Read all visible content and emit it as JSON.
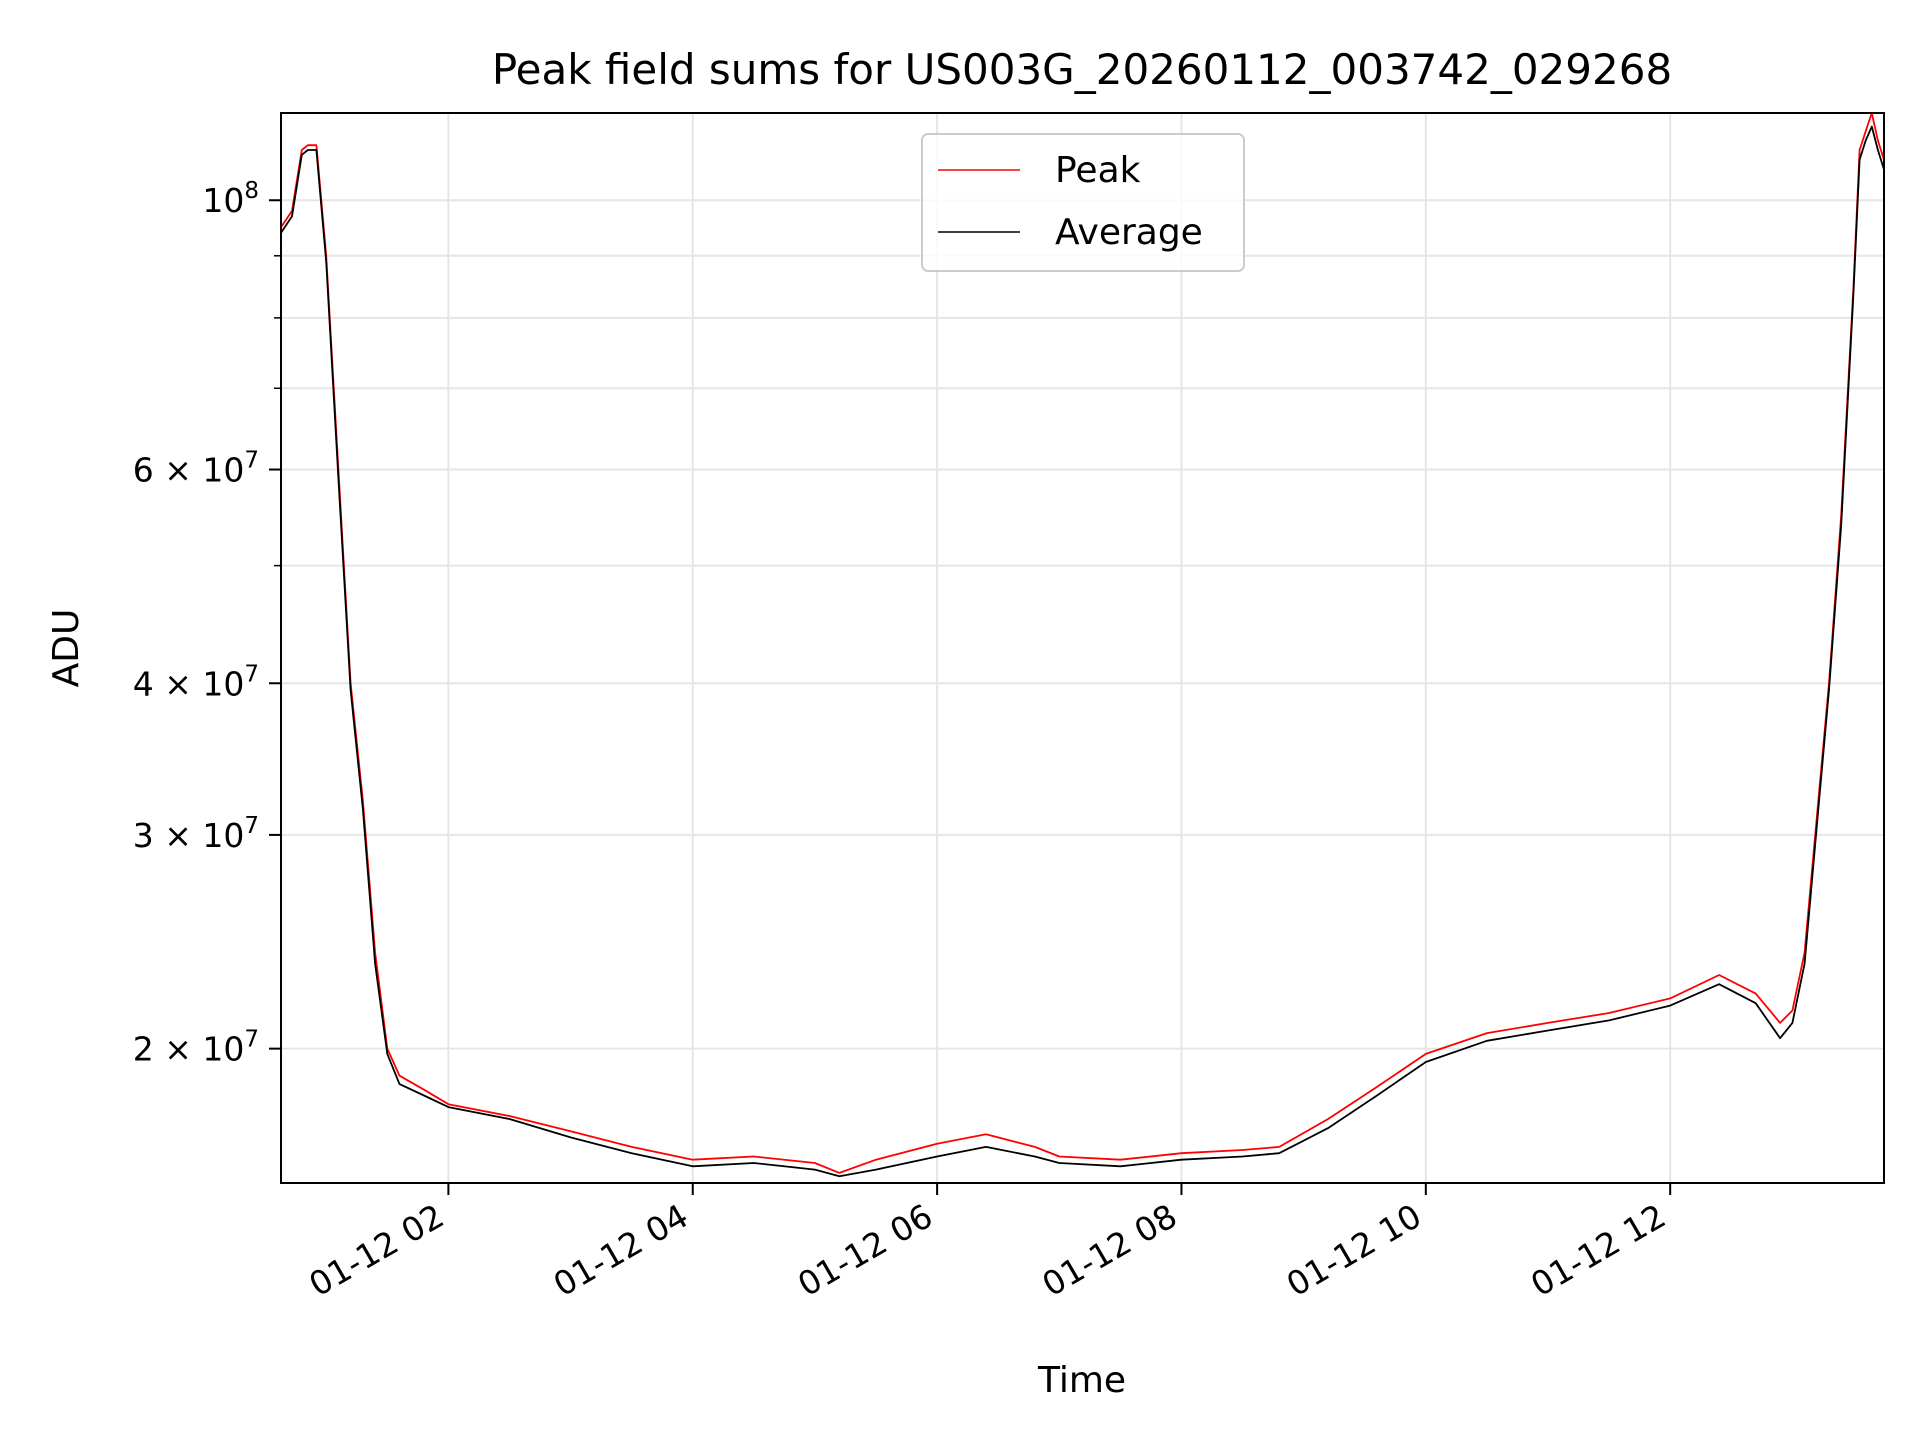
{
  "chart_data": {
    "type": "line",
    "title": "Peak field sums for US003G_20260112_003742_029268",
    "xlabel": "Time",
    "ylabel": "ADU",
    "x_unit": "hours since 2026-01-12 00:00",
    "xlim": [
      0.63,
      13.75
    ],
    "ylim": [
      15500000,
      118000000
    ],
    "yscale": "log",
    "grid": true,
    "legend_position": "top-center",
    "x_ticks": [
      {
        "value": 2,
        "label": "01-12 02"
      },
      {
        "value": 4,
        "label": "01-12 04"
      },
      {
        "value": 6,
        "label": "01-12 06"
      },
      {
        "value": 8,
        "label": "01-12 08"
      },
      {
        "value": 10,
        "label": "01-12 10"
      },
      {
        "value": 12,
        "label": "01-12 12"
      }
    ],
    "y_ticks": [
      {
        "value": 20000000,
        "mantissa": "2",
        "exponent": "7"
      },
      {
        "value": 30000000,
        "mantissa": "3",
        "exponent": "7"
      },
      {
        "value": 40000000,
        "mantissa": "4",
        "exponent": "7"
      },
      {
        "value": 60000000,
        "mantissa": "6",
        "exponent": "7"
      },
      {
        "value": 100000000,
        "mantissa": "10",
        "exponent": "8"
      }
    ],
    "y_minor_ticks": [
      50000000,
      70000000,
      80000000,
      90000000
    ],
    "series": [
      {
        "name": "Peak",
        "color": "#ff0000",
        "x": [
          0.63,
          0.72,
          0.8,
          0.85,
          0.92,
          1.0,
          1.1,
          1.2,
          1.3,
          1.4,
          1.5,
          1.6,
          1.8,
          2.0,
          2.5,
          3.0,
          3.5,
          4.0,
          4.5,
          5.0,
          5.2,
          5.5,
          6.0,
          6.4,
          6.8,
          7.0,
          7.5,
          8.0,
          8.5,
          8.8,
          9.2,
          9.6,
          10.0,
          10.5,
          11.0,
          11.5,
          12.0,
          12.4,
          12.7,
          12.9,
          13.0,
          13.1,
          13.2,
          13.3,
          13.4,
          13.5,
          13.55,
          13.6,
          13.65,
          13.7,
          13.75
        ],
        "y": [
          95000000,
          98000000,
          110000000,
          111000000,
          111000000,
          90000000,
          60000000,
          40000000,
          32000000,
          24000000,
          20000000,
          19000000,
          18500000,
          18000000,
          17600000,
          17100000,
          16600000,
          16200000,
          16300000,
          16100000,
          15800000,
          16200000,
          16700000,
          17000000,
          16600000,
          16300000,
          16200000,
          16400000,
          16500000,
          16600000,
          17500000,
          18600000,
          19800000,
          20600000,
          21000000,
          21400000,
          22000000,
          23000000,
          22200000,
          21000000,
          21500000,
          24000000,
          31000000,
          40000000,
          55000000,
          85000000,
          110000000,
          114000000,
          118000000,
          112000000,
          108000000
        ]
      },
      {
        "name": "Average",
        "color": "#000000",
        "x": [
          0.63,
          0.72,
          0.8,
          0.85,
          0.92,
          1.0,
          1.1,
          1.2,
          1.3,
          1.4,
          1.5,
          1.6,
          1.8,
          2.0,
          2.5,
          3.0,
          3.5,
          4.0,
          4.5,
          5.0,
          5.2,
          5.5,
          6.0,
          6.4,
          6.8,
          7.0,
          7.5,
          8.0,
          8.5,
          8.8,
          9.2,
          9.6,
          10.0,
          10.5,
          11.0,
          11.5,
          12.0,
          12.4,
          12.7,
          12.9,
          13.0,
          13.1,
          13.2,
          13.3,
          13.4,
          13.5,
          13.55,
          13.6,
          13.65,
          13.7,
          13.75
        ],
        "y": [
          94000000,
          97000000,
          109000000,
          110000000,
          110000000,
          89000000,
          59000000,
          39500000,
          31500000,
          23500000,
          19800000,
          18700000,
          18300000,
          17900000,
          17500000,
          16900000,
          16400000,
          16000000,
          16100000,
          15900000,
          15700000,
          15900000,
          16300000,
          16600000,
          16300000,
          16100000,
          16000000,
          16200000,
          16300000,
          16400000,
          17200000,
          18300000,
          19500000,
          20300000,
          20700000,
          21100000,
          21700000,
          22600000,
          21800000,
          20400000,
          21000000,
          23500000,
          30500000,
          39500000,
          54000000,
          84000000,
          108000000,
          112000000,
          115000000,
          110000000,
          106000000
        ]
      }
    ]
  }
}
